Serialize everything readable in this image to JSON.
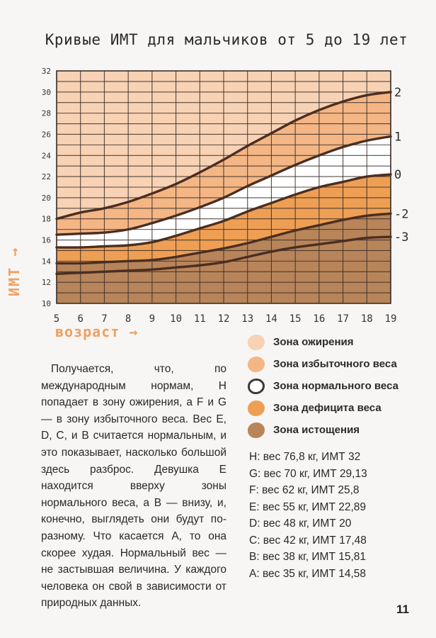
{
  "chart_data": {
    "type": "area",
    "title": "Кривые ИМТ для мальчиков от 5 до 19 лет",
    "xlabel": "возраст",
    "ylabel": "ИМТ",
    "xlim": [
      5,
      19
    ],
    "ylim": [
      10,
      32
    ],
    "x_ticks": [
      5,
      6,
      7,
      8,
      9,
      10,
      11,
      12,
      13,
      14,
      15,
      16,
      17,
      18,
      19
    ],
    "y_ticks": [
      10,
      12,
      14,
      16,
      18,
      20,
      22,
      24,
      26,
      28,
      30,
      32
    ],
    "grid": true,
    "x": [
      5,
      6,
      7,
      8,
      9,
      10,
      11,
      12,
      13,
      14,
      15,
      16,
      17,
      18,
      19
    ],
    "series": [
      {
        "name": "2",
        "values": [
          18.0,
          18.6,
          19.0,
          19.6,
          20.4,
          21.3,
          22.4,
          23.6,
          24.9,
          26.1,
          27.3,
          28.3,
          29.1,
          29.7,
          30.0
        ]
      },
      {
        "name": "1",
        "values": [
          16.5,
          16.6,
          16.7,
          17.0,
          17.6,
          18.3,
          19.1,
          20.0,
          21.1,
          22.1,
          23.1,
          24.0,
          24.8,
          25.4,
          25.8
        ]
      },
      {
        "name": "0",
        "values": [
          15.3,
          15.3,
          15.4,
          15.5,
          15.8,
          16.4,
          17.1,
          17.8,
          18.7,
          19.5,
          20.3,
          21.0,
          21.5,
          22.0,
          22.2
        ]
      },
      {
        "name": "-2",
        "values": [
          13.8,
          13.8,
          13.9,
          14.0,
          14.1,
          14.4,
          14.8,
          15.2,
          15.7,
          16.3,
          16.9,
          17.4,
          17.9,
          18.3,
          18.5
        ]
      },
      {
        "name": "-3",
        "values": [
          12.8,
          12.9,
          13.0,
          13.1,
          13.2,
          13.4,
          13.6,
          13.9,
          14.4,
          14.9,
          15.3,
          15.6,
          15.9,
          16.2,
          16.3
        ]
      }
    ],
    "legend": [
      {
        "label": "Зона ожирения",
        "color": "#f8d2b4"
      },
      {
        "label": "Зона избыточного веса",
        "color": "#f4b684"
      },
      {
        "label": "Зона нормального веса",
        "color": "#ffffff"
      },
      {
        "label": "Зона дефицита веса",
        "color": "#ee9f54"
      },
      {
        "label": "Зона истощения",
        "color": "#b88459"
      }
    ]
  },
  "text": {
    "arrow": "→",
    "paragraph": "Получается, что, по международным нормам, H попадает в зону ожирения, а F и G — в зону избыточного веса. Вес E, D, C, и B считается нормальным, и это показывает, насколько большой здесь разброс. Девушка E находится вверху зоны нормального веса, а B — внизу, и, конечно, выглядеть они будут по-разному. Что касается А, то она скорее худая. Нормальный вес — не застывшая величина. У каждого человека он свой в зависимости от природных данных.",
    "page_number": "11"
  },
  "stats": [
    "H: вес 76,8 кг, ИМТ 32",
    "G: вес 70 кг, ИМТ 29,13",
    "F: вес 62 кг, ИМТ 25,8",
    "E: вес 55 кг, ИМТ 22,89",
    "D: вес 48 кг, ИМТ 20",
    "C: вес 42 кг, ИМТ 17,48",
    "B: вес 38 кг, ИМТ 15,81",
    "A: вес 35 кг, ИМТ 14,58"
  ],
  "colors": {
    "obese": "#f8d2b4",
    "overweight": "#f4b684",
    "normal": "#ffffff",
    "deficit": "#ee9f54",
    "exhaustion": "#b88459",
    "accent": "#f0a060",
    "grid": "#3a2e28"
  }
}
